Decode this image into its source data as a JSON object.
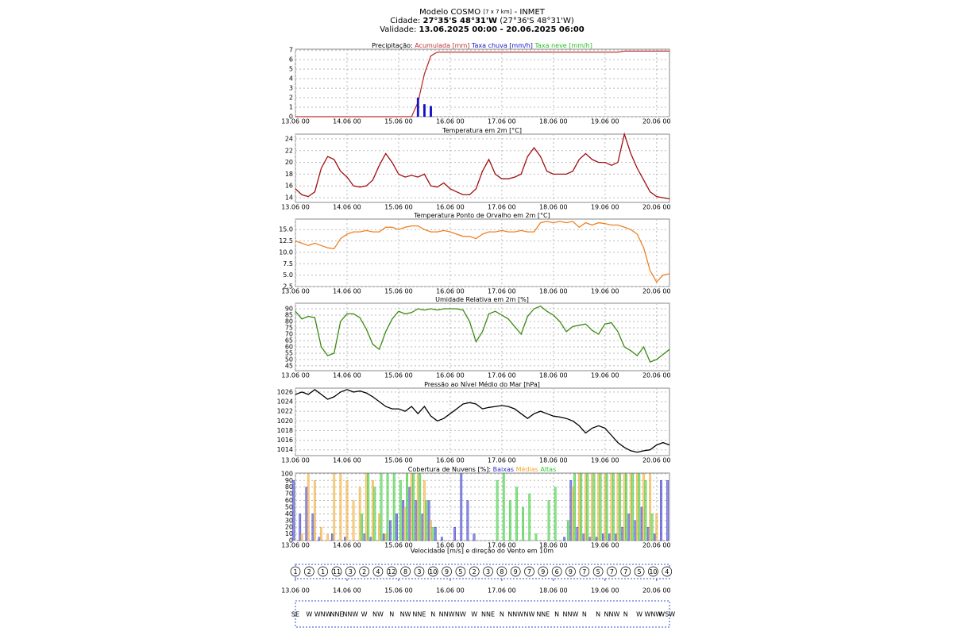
{
  "header": {
    "model": "Modelo COSMO",
    "resolution": "[7 x 7 km]",
    "source": "- INMET",
    "city_label": "Cidade:",
    "city_coords": "27°35'S 48°31'W",
    "city_alt": "(27°36'S 48°31'W)",
    "validity_label": "Validade:",
    "validity": "13.06.2025 00:00 - 20.06.2025 06:00"
  },
  "time": {
    "xlim": [
      0,
      174
    ],
    "xticks": [
      {
        "value": 0,
        "label": "13.06 00"
      },
      {
        "value": 24,
        "label": "14.06 00"
      },
      {
        "value": 48,
        "label": "15.06 00"
      },
      {
        "value": 72,
        "label": "16.06 00"
      },
      {
        "value": 96,
        "label": "17.06 00"
      },
      {
        "value": 120,
        "label": "18.06 00"
      },
      {
        "value": 144,
        "label": "19.06 00"
      },
      {
        "value": 168,
        "label": "20.06 00"
      }
    ],
    "x": [
      0,
      3,
      6,
      9,
      12,
      15,
      18,
      21,
      24,
      27,
      30,
      33,
      36,
      39,
      42,
      45,
      48,
      51,
      54,
      57,
      60,
      63,
      66,
      69,
      72,
      75,
      78,
      81,
      84,
      87,
      90,
      93,
      96,
      99,
      102,
      105,
      108,
      111,
      114,
      117,
      120,
      123,
      126,
      129,
      132,
      135,
      138,
      141,
      144,
      147,
      150,
      153,
      156,
      159,
      162,
      165,
      168,
      171,
      174
    ]
  },
  "chart_data": [
    {
      "type": "line",
      "title": "Precipitação:",
      "ylim": [
        0,
        7.1
      ],
      "yticks": [
        0,
        1,
        2,
        3,
        4,
        5,
        6,
        7
      ],
      "grid": true,
      "series": [
        {
          "name": "Acumulada [mm]",
          "color": "#c03030",
          "mark": "line",
          "values": [
            0,
            0,
            0,
            0,
            0,
            0,
            0,
            0,
            0,
            0,
            0,
            0,
            0,
            0,
            0,
            0,
            0,
            0,
            0,
            1.5,
            4.5,
            6.4,
            6.8,
            6.8,
            6.8,
            6.8,
            6.8,
            6.8,
            6.8,
            6.8,
            6.8,
            6.8,
            6.8,
            6.8,
            6.8,
            6.8,
            6.8,
            6.8,
            6.8,
            6.8,
            6.8,
            6.8,
            6.8,
            6.8,
            6.8,
            6.8,
            6.8,
            6.8,
            6.8,
            6.8,
            6.8,
            6.9,
            6.9,
            6.9,
            6.9,
            6.9,
            6.9,
            6.9,
            6.9
          ]
        },
        {
          "name": "Taxa chuva [mm/h]",
          "color": "#1010c8",
          "mark": "bar",
          "values": [
            0,
            0,
            0,
            0,
            0,
            0,
            0,
            0,
            0,
            0,
            0,
            0,
            0,
            0,
            0,
            0,
            0,
            0,
            0,
            2.0,
            1.3,
            1.1,
            0,
            0,
            0,
            0,
            0,
            0,
            0,
            0,
            0,
            0,
            0,
            0,
            0,
            0,
            0,
            0,
            0,
            0,
            0,
            0,
            0,
            0,
            0,
            0,
            0,
            0,
            0,
            0,
            0,
            0,
            0,
            0,
            0,
            0,
            0,
            0,
            0
          ]
        },
        {
          "name": "Taxa neve [mm/h]",
          "color": "#20c020",
          "mark": "bar",
          "values": [
            0,
            0,
            0,
            0,
            0,
            0,
            0,
            0,
            0,
            0,
            0,
            0,
            0,
            0,
            0,
            0,
            0,
            0,
            0,
            0,
            0,
            0,
            0,
            0,
            0,
            0,
            0,
            0,
            0,
            0,
            0,
            0,
            0,
            0,
            0,
            0,
            0,
            0,
            0,
            0,
            0,
            0,
            0,
            0,
            0,
            0,
            0,
            0,
            0,
            0,
            0,
            0,
            0,
            0,
            0,
            0,
            0,
            0,
            0
          ]
        }
      ]
    },
    {
      "type": "line",
      "title": "Temperatura em 2m [°C]",
      "ylim": [
        13.2,
        24.8
      ],
      "yticks": [
        14,
        16,
        18,
        20,
        22,
        24
      ],
      "grid": true,
      "series": [
        {
          "color": "#a01010",
          "values": [
            15.5,
            14.5,
            14.2,
            15,
            19,
            21,
            20.5,
            18.5,
            17.5,
            16,
            15.8,
            16,
            17,
            19.5,
            21.5,
            20,
            18,
            17.5,
            17.8,
            17.5,
            18,
            16,
            15.8,
            16.5,
            15.5,
            15,
            14.5,
            14.5,
            15.5,
            18.5,
            20.5,
            18,
            17.2,
            17.2,
            17.5,
            18,
            21,
            22.5,
            21,
            18.5,
            18,
            18,
            18,
            18.5,
            20.5,
            21.5,
            20.5,
            20,
            20,
            19.5,
            20,
            24.8,
            21.5,
            19,
            17,
            15,
            14.2,
            14,
            13.8
          ]
        }
      ]
    },
    {
      "type": "line",
      "title": "Temperatura Ponto de Orvalho em 2m [°C]",
      "ylim": [
        2.5,
        17.3
      ],
      "yticks": [
        2.5,
        {
          "value": 5,
          "label": "5.0"
        },
        7.5,
        {
          "value": 10,
          "label": "10.0"
        },
        12.5,
        {
          "value": 15,
          "label": "15.0"
        }
      ],
      "grid": true,
      "series": [
        {
          "color": "#f08020",
          "values": [
            12.5,
            12,
            11.5,
            12,
            11.5,
            11,
            10.8,
            13,
            14,
            14.5,
            14.5,
            14.8,
            14.5,
            14.5,
            15.5,
            15.5,
            15,
            15.5,
            15.8,
            15.8,
            15,
            14.5,
            14.5,
            14.8,
            14.5,
            14,
            13.5,
            13.5,
            13,
            14,
            14.5,
            14.5,
            14.8,
            14.5,
            14.5,
            14.8,
            14.5,
            14.5,
            16.5,
            16.8,
            16.5,
            16.8,
            16.5,
            16.8,
            15.5,
            16.5,
            16,
            16.5,
            16.3,
            16,
            16,
            15.5,
            15,
            14,
            11,
            6,
            3.5,
            5,
            5.3
          ]
        }
      ]
    },
    {
      "type": "line",
      "title": "Umidade Relativa em 2m [%]",
      "ylim": [
        41.2,
        94.4
      ],
      "yticks": [
        45,
        50,
        55,
        60,
        65,
        70,
        75,
        80,
        85,
        90
      ],
      "grid": true,
      "series": [
        {
          "color": "#3a8a10",
          "values": [
            88,
            82,
            84,
            83,
            60,
            53,
            55,
            80,
            86,
            86,
            83,
            74,
            62,
            58,
            72,
            82,
            88,
            86,
            87,
            90,
            89,
            90,
            89,
            90,
            90,
            90,
            89,
            80,
            64,
            72,
            86,
            88,
            85,
            82,
            76,
            70,
            84,
            90,
            92,
            88,
            85,
            80,
            72,
            76,
            77,
            78,
            73,
            70,
            78,
            79,
            72,
            60,
            57,
            53,
            60,
            48,
            50,
            54,
            58
          ]
        }
      ]
    },
    {
      "type": "line",
      "title": "Pressão ao Nível Médio do Mar [hPa]",
      "ylim": [
        1012.8,
        1026.8
      ],
      "yticks": [
        1014,
        1016,
        1018,
        1020,
        1022,
        1024,
        1026
      ],
      "grid": true,
      "series": [
        {
          "color": "#000000",
          "values": [
            1025.5,
            1026,
            1025.5,
            1026.5,
            1025.5,
            1024.5,
            1025,
            1026,
            1026.5,
            1026,
            1026.2,
            1025.8,
            1025,
            1024,
            1023,
            1022.5,
            1022.5,
            1022,
            1023,
            1021.5,
            1023,
            1021,
            1020,
            1020.5,
            1021.5,
            1022.5,
            1023.5,
            1023.8,
            1023.5,
            1022.5,
            1022.8,
            1023,
            1023.2,
            1023,
            1022.5,
            1021.5,
            1020.5,
            1021.5,
            1022,
            1021.5,
            1021,
            1020.8,
            1020.5,
            1020,
            1019,
            1017.5,
            1018.5,
            1019,
            1018.5,
            1017,
            1015.5,
            1014.5,
            1013.8,
            1013.5,
            1013.8,
            1014,
            1015,
            1015.5,
            1015
          ]
        }
      ]
    },
    {
      "type": "bar",
      "title": "Cobertura de Nuvens [%]:",
      "ylim": [
        0,
        101
      ],
      "yticks": [
        0,
        10,
        20,
        30,
        40,
        50,
        60,
        70,
        80,
        90,
        100
      ],
      "grid": true,
      "series": [
        {
          "name": "Baixas",
          "color": "#3030c8",
          "values": [
            90,
            40,
            80,
            40,
            5,
            0,
            10,
            0,
            5,
            0,
            0,
            10,
            5,
            0,
            10,
            30,
            40,
            60,
            80,
            60,
            40,
            60,
            20,
            5,
            0,
            20,
            100,
            60,
            10,
            0,
            0,
            0,
            0,
            0,
            0,
            0,
            0,
            0,
            0,
            0,
            0,
            0,
            5,
            90,
            20,
            10,
            5,
            5,
            10,
            10,
            10,
            20,
            40,
            30,
            50,
            20,
            10,
            90,
            90
          ]
        },
        {
          "name": "Médias",
          "color": "#f0a830",
          "values": [
            0,
            10,
            100,
            90,
            20,
            10,
            100,
            100,
            90,
            60,
            80,
            100,
            90,
            40,
            10,
            0,
            0,
            50,
            100,
            100,
            90,
            30,
            0,
            0,
            0,
            0,
            0,
            0,
            0,
            0,
            0,
            0,
            0,
            0,
            0,
            0,
            0,
            0,
            0,
            0,
            0,
            0,
            0,
            80,
            100,
            100,
            100,
            100,
            100,
            100,
            100,
            100,
            100,
            100,
            100,
            100,
            40,
            0,
            0
          ]
        },
        {
          "name": "Altas",
          "color": "#30c830",
          "values": [
            0,
            0,
            0,
            0,
            0,
            0,
            0,
            0,
            0,
            0,
            40,
            100,
            80,
            100,
            100,
            100,
            90,
            100,
            100,
            100,
            60,
            20,
            0,
            0,
            0,
            0,
            0,
            0,
            0,
            0,
            0,
            90,
            100,
            60,
            80,
            50,
            70,
            10,
            0,
            60,
            80,
            0,
            30,
            100,
            100,
            100,
            100,
            100,
            100,
            100,
            100,
            100,
            100,
            100,
            90,
            40,
            0,
            0,
            0
          ]
        }
      ]
    },
    {
      "type": "wind",
      "title": "Velocidade [m/s] e direção do Vento em 10m",
      "x": [
        0,
        6.4,
        12.8,
        19.2,
        25.6,
        32,
        38.4,
        44.8,
        51.2,
        57.6,
        64,
        70.4,
        76.8,
        83.2,
        89.6,
        96,
        102.4,
        108.8,
        115.2,
        121.6,
        128,
        134.4,
        140.8,
        147.2,
        153.6,
        160,
        166.4,
        172.8
      ],
      "values": [
        1,
        2,
        1,
        11,
        3,
        2,
        4,
        12,
        8,
        3,
        10,
        9,
        5,
        2,
        3,
        8,
        9,
        7,
        9,
        6,
        9,
        7,
        5,
        7,
        7,
        5,
        10,
        4
      ],
      "directions": [
        "SE",
        "W",
        "WNW",
        "NNE",
        "NNW",
        "W",
        "NW",
        "N",
        "NW",
        "NNE",
        "N",
        "NNW",
        "NW",
        "W",
        "NNE",
        "N",
        "NNW",
        "NW",
        "NNE",
        "N",
        "NNW",
        "N",
        "N",
        "NNW",
        "N",
        "W",
        "WNW",
        "WSW"
      ]
    }
  ]
}
